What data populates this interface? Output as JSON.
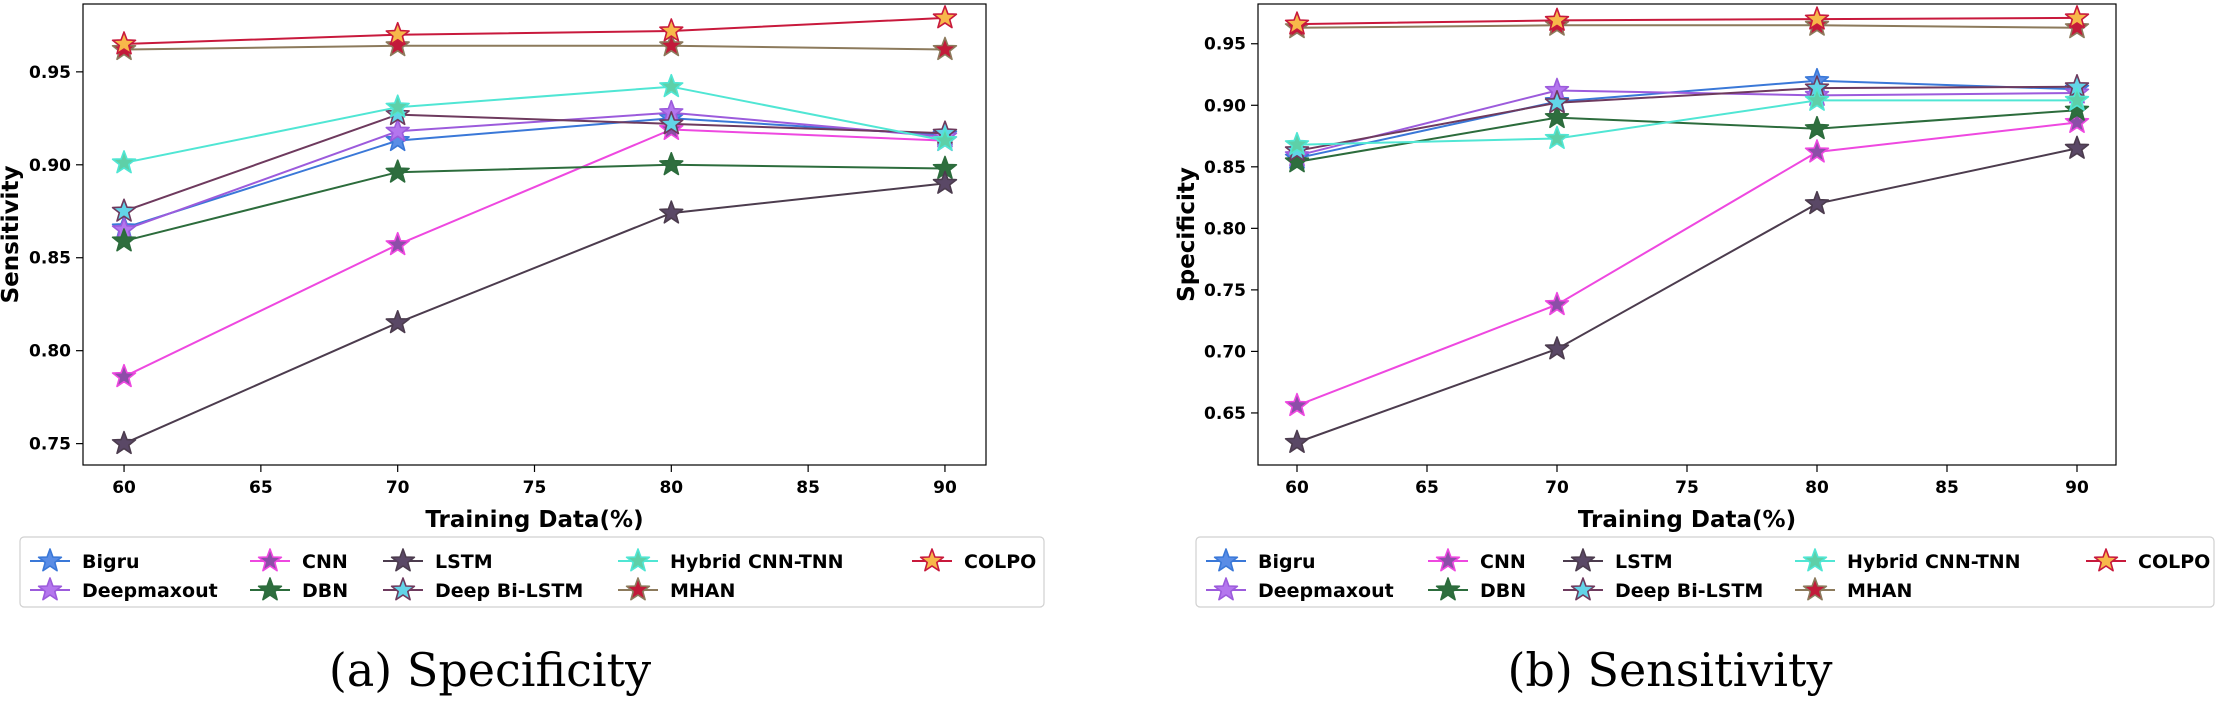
{
  "figure": {
    "colors": {
      "Bigru": "#3a78d8",
      "Deepmaxout": "#9c5bdc",
      "CNN": "#ee48e0",
      "DBN": "#2c6c3c",
      "LSTM": "#4c3c4e",
      "Deep Bi-LSTM": "#6e3a5e",
      "Hybrid CNN-TNN": "#50e6d4",
      "MHAN": "#8c7a5c",
      "COLPO": "#c8193c"
    },
    "marker_fill": {
      "Bigru": "#5a8de6",
      "Deepmaxout": "#b476ee",
      "CNN": "#8c4ea8",
      "DBN": "#2e6e3e",
      "LSTM": "#5a4866",
      "Deep Bi-LSTM": "#62d4e8",
      "Hybrid CNN-TNN": "#5ed0a8",
      "MHAN": "#c21a3a",
      "COLPO": "#f7b84a"
    }
  },
  "chart_data": [
    {
      "type": "line",
      "panel": "a",
      "caption": "(a) Specificity",
      "xlabel": "Training Data(%)",
      "ylabel": "Sensitivity",
      "xlim": [
        58.5,
        91.5
      ],
      "ylim": [
        0.7385,
        0.9865
      ],
      "xticks": [
        60,
        65,
        70,
        75,
        80,
        85,
        90
      ],
      "xtick_labels": [
        "60",
        "65",
        "70",
        "75",
        "80",
        "85",
        "90"
      ],
      "yticks": [
        0.75,
        0.8,
        0.85,
        0.9,
        0.95
      ],
      "ytick_labels": [
        "0.75",
        "0.80",
        "0.85",
        "0.90",
        "0.95"
      ],
      "legend_position": "below",
      "x": [
        60,
        70,
        80,
        90
      ],
      "series": [
        {
          "name": "Bigru",
          "values": [
            0.866,
            0.913,
            0.925,
            0.916
          ]
        },
        {
          "name": "Deepmaxout",
          "values": [
            0.865,
            0.918,
            0.928,
            0.915
          ]
        },
        {
          "name": "CNN",
          "values": [
            0.786,
            0.857,
            0.919,
            0.913
          ]
        },
        {
          "name": "DBN",
          "values": [
            0.859,
            0.896,
            0.9,
            0.898
          ]
        },
        {
          "name": "LSTM",
          "values": [
            0.75,
            0.815,
            0.874,
            0.89
          ]
        },
        {
          "name": "Deep Bi-LSTM",
          "values": [
            0.875,
            0.927,
            0.922,
            0.917
          ]
        },
        {
          "name": "Hybrid CNN-TNN",
          "values": [
            0.901,
            0.931,
            0.942,
            0.913
          ]
        },
        {
          "name": "MHAN",
          "values": [
            0.962,
            0.964,
            0.964,
            0.962
          ]
        },
        {
          "name": "COLPO",
          "values": [
            0.965,
            0.97,
            0.972,
            0.979
          ]
        }
      ]
    },
    {
      "type": "line",
      "panel": "b",
      "caption": "(b) Sensitivity",
      "xlabel": "Training Data(%)",
      "ylabel": "Specificity",
      "xlim": [
        58.5,
        91.5
      ],
      "ylim": [
        0.6077,
        0.9823
      ],
      "xticks": [
        60,
        65,
        70,
        75,
        80,
        85,
        90
      ],
      "xtick_labels": [
        "60",
        "65",
        "70",
        "75",
        "80",
        "85",
        "90"
      ],
      "yticks": [
        0.65,
        0.7,
        0.75,
        0.8,
        0.85,
        0.9,
        0.95
      ],
      "ytick_labels": [
        "0.65",
        "0.70",
        "0.75",
        "0.80",
        "0.85",
        "0.90",
        "0.95"
      ],
      "legend_position": "below",
      "x": [
        60,
        70,
        80,
        90
      ],
      "series": [
        {
          "name": "Bigru",
          "values": [
            0.857,
            0.903,
            0.92,
            0.913
          ]
        },
        {
          "name": "Deepmaxout",
          "values": [
            0.859,
            0.912,
            0.908,
            0.91
          ]
        },
        {
          "name": "CNN",
          "values": [
            0.656,
            0.738,
            0.862,
            0.886
          ]
        },
        {
          "name": "DBN",
          "values": [
            0.854,
            0.89,
            0.881,
            0.896
          ]
        },
        {
          "name": "LSTM",
          "values": [
            0.626,
            0.702,
            0.82,
            0.865
          ]
        },
        {
          "name": "Deep Bi-LSTM",
          "values": [
            0.863,
            0.902,
            0.914,
            0.915
          ]
        },
        {
          "name": "Hybrid CNN-TNN",
          "values": [
            0.868,
            0.873,
            0.904,
            0.904
          ]
        },
        {
          "name": "MHAN",
          "values": [
            0.963,
            0.965,
            0.965,
            0.963
          ]
        },
        {
          "name": "COLPO",
          "values": [
            0.966,
            0.969,
            0.97,
            0.971
          ]
        }
      ]
    }
  ],
  "legend_order": [
    "Bigru",
    "Deepmaxout",
    "CNN",
    "DBN",
    "LSTM",
    "Deep Bi-LSTM",
    "Hybrid CNN-TNN",
    "MHAN",
    "COLPO"
  ]
}
